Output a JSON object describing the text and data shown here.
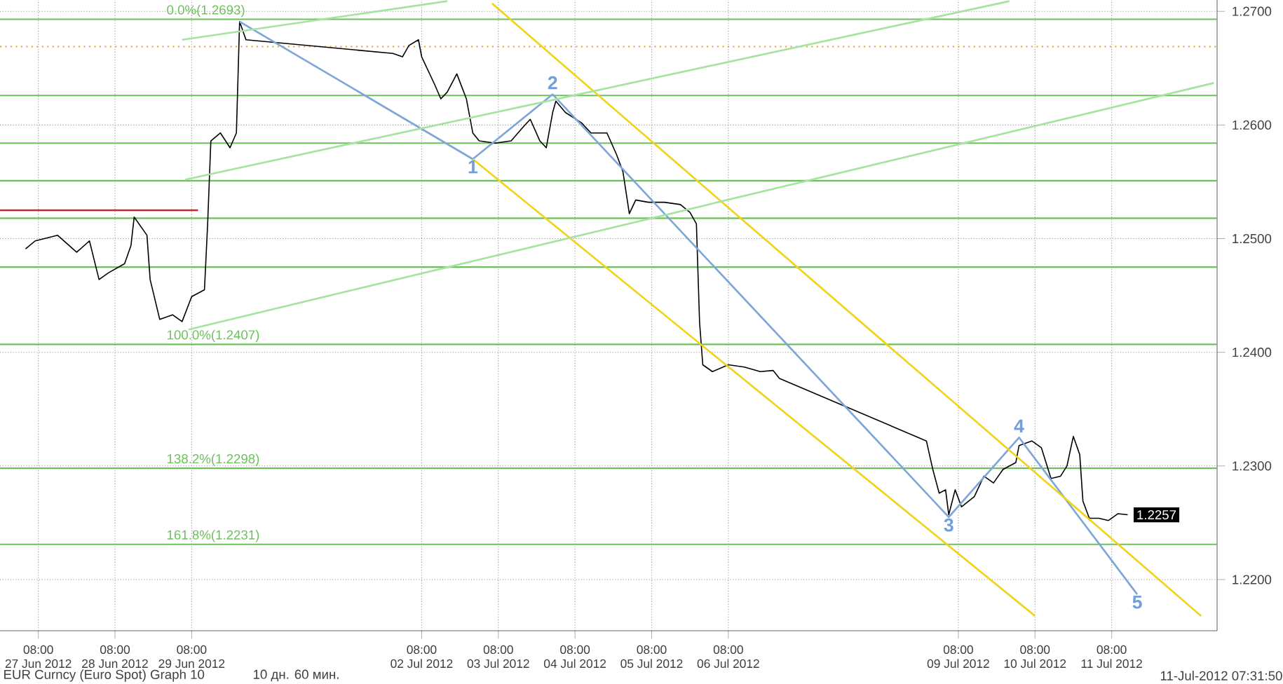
{
  "chart_data": {
    "type": "line",
    "xlim": [
      "2012-06-26T20:00",
      "2012-07-12T17:00"
    ],
    "ylim": [
      1.2155,
      1.271
    ],
    "xticks": [
      {
        "value": "2012-06-27T08:00",
        "label": "08:00 27 Jun 2012"
      },
      {
        "value": "2012-06-28T08:00",
        "label": "08:00 28 Jun 2012"
      },
      {
        "value": "2012-06-29T08:00",
        "label": "08:00 29 Jun 2012"
      },
      {
        "value": "2012-07-02T08:00",
        "label": "08:00 02 Jul 2012"
      },
      {
        "value": "2012-07-03T08:00",
        "label": "08:00 03 Jul 2012"
      },
      {
        "value": "2012-07-04T08:00",
        "label": "08:00 04 Jul 2012"
      },
      {
        "value": "2012-07-05T08:00",
        "label": "08:00 05 Jul 2012"
      },
      {
        "value": "2012-07-06T08:00",
        "label": "08:00 06 Jul 2012"
      },
      {
        "value": "2012-07-09T08:00",
        "label": "08:00 09 Jul 2012"
      },
      {
        "value": "2012-07-10T08:00",
        "label": "08:00 10 Jul 2012"
      },
      {
        "value": "2012-07-11T08:00",
        "label": "08:00 11 Jul 2012"
      }
    ],
    "yticks": [
      {
        "value": 1.22,
        "label": "1.2200"
      },
      {
        "value": 1.23,
        "label": "1.2300"
      },
      {
        "value": 1.24,
        "label": "1.2400"
      },
      {
        "value": 1.25,
        "label": "1.2500"
      },
      {
        "value": 1.26,
        "label": "1.2600"
      },
      {
        "value": 1.27,
        "label": "1.2700"
      }
    ],
    "grid": true,
    "marker": "none",
    "series": [
      {
        "color": "#000000",
        "line_style": "solid",
        "x": [
          "2012-06-27T04:00",
          "2012-06-27T07:00",
          "2012-06-27T14:00",
          "2012-06-27T20:00",
          "2012-06-28T00:00",
          "2012-06-28T03:00",
          "2012-06-28T06:00",
          "2012-06-28T11:00",
          "2012-06-28T13:00",
          "2012-06-28T14:00",
          "2012-06-28T18:00",
          "2012-06-28T19:00",
          "2012-06-28T22:00",
          "2012-06-29T02:00",
          "2012-06-29T05:00",
          "2012-06-29T08:00",
          "2012-06-29T12:00",
          "2012-06-29T13:00",
          "2012-06-29T14:00",
          "2012-06-29T17:00",
          "2012-06-29T20:00",
          "2012-06-29T22:00",
          "2012-06-29T23:00",
          "2012-06-30T01:00",
          "2012-07-01T23:00",
          "2012-07-02T02:00",
          "2012-07-02T04:00",
          "2012-07-02T07:00",
          "2012-07-02T08:00",
          "2012-07-02T12:00",
          "2012-07-02T14:00",
          "2012-07-02T16:00",
          "2012-07-02T19:00",
          "2012-07-02T22:00",
          "2012-07-03T00:00",
          "2012-07-03T02:00",
          "2012-07-03T07:00",
          "2012-07-03T12:00",
          "2012-07-03T16:00",
          "2012-07-03T18:00",
          "2012-07-03T21:00",
          "2012-07-03T23:00",
          "2012-07-04T01:00",
          "2012-07-04T02:00",
          "2012-07-04T05:00",
          "2012-07-04T10:00",
          "2012-07-04T13:00",
          "2012-07-04T18:00",
          "2012-07-04T21:00",
          "2012-07-04T23:00",
          "2012-07-05T01:00",
          "2012-07-05T03:00",
          "2012-07-05T07:00",
          "2012-07-05T12:00",
          "2012-07-05T17:00",
          "2012-07-05T20:00",
          "2012-07-05T22:00",
          "2012-07-05T23:00",
          "2012-07-06T00:00",
          "2012-07-06T03:00",
          "2012-07-06T08:00",
          "2012-07-06T13:00",
          "2012-07-06T18:00",
          "2012-07-06T22:00",
          "2012-07-07T00:00",
          "2012-07-08T22:00",
          "2012-07-09T00:00",
          "2012-07-09T02:00",
          "2012-07-09T04:00",
          "2012-07-09T05:00",
          "2012-07-09T07:00",
          "2012-07-09T09:00",
          "2012-07-09T13:00",
          "2012-07-09T16:00",
          "2012-07-09T19:00",
          "2012-07-09T22:00",
          "2012-07-10T02:00",
          "2012-07-10T03:00",
          "2012-07-10T07:00",
          "2012-07-10T10:00",
          "2012-07-10T13:00",
          "2012-07-10T16:00",
          "2012-07-10T18:00",
          "2012-07-10T20:00",
          "2012-07-10T22:00",
          "2012-07-10T23:00",
          "2012-07-11T01:00",
          "2012-07-11T04:00",
          "2012-07-11T07:00",
          "2012-07-11T10:00",
          "2012-07-11T13:00"
        ],
        "values": [
          1.2491,
          1.2498,
          1.2503,
          1.2488,
          1.2498,
          1.2464,
          1.247,
          1.2478,
          1.2494,
          1.2519,
          1.2503,
          1.2464,
          1.2429,
          1.2433,
          1.2427,
          1.2449,
          1.2455,
          1.2513,
          1.2586,
          1.2593,
          1.258,
          1.2593,
          1.2691,
          1.2675,
          1.2663,
          1.266,
          1.267,
          1.2675,
          1.266,
          1.2636,
          1.2623,
          1.2629,
          1.2645,
          1.2623,
          1.2593,
          1.2586,
          1.2584,
          1.2586,
          1.2599,
          1.2605,
          1.2586,
          1.258,
          1.2611,
          1.2621,
          1.2611,
          1.2602,
          1.2593,
          1.2593,
          1.2574,
          1.2559,
          1.2522,
          1.2534,
          1.2532,
          1.2532,
          1.253,
          1.2523,
          1.2513,
          1.2426,
          1.2389,
          1.2383,
          1.2389,
          1.2387,
          1.2383,
          1.2384,
          1.2377,
          1.2322,
          1.2297,
          1.2276,
          1.2279,
          1.2257,
          1.2279,
          1.2264,
          1.2273,
          1.2291,
          1.2285,
          1.2297,
          1.2303,
          1.2318,
          1.2322,
          1.2316,
          1.2289,
          1.2291,
          1.23,
          1.2326,
          1.231,
          1.2269,
          1.2254,
          1.2254,
          1.2252,
          1.2258,
          1.2257
        ],
        "value_labels": [
          null,
          null,
          null,
          null,
          null,
          null,
          null,
          null,
          null,
          null,
          null,
          null,
          null,
          null,
          null,
          null,
          null,
          null,
          null,
          null,
          null,
          null,
          null,
          null,
          null,
          null,
          null,
          null,
          null,
          null,
          null,
          null,
          null,
          null,
          null,
          null,
          null,
          null,
          null,
          null,
          null,
          null,
          null,
          null,
          null,
          null,
          null,
          null,
          null,
          null,
          null,
          null,
          null,
          null,
          null,
          null,
          null,
          null,
          null,
          null,
          null,
          null,
          null,
          null,
          null,
          null,
          null,
          null,
          null,
          null,
          null,
          null,
          null,
          null,
          null,
          null,
          null,
          null,
          null,
          null,
          null,
          null,
          null,
          null,
          null,
          null,
          null,
          null,
          null,
          null,
          "1.2257"
        ]
      },
      {
        "color": "#c0302a",
        "line_style": "solid",
        "x": [
          "2012-06-26T20:00",
          "2012-06-29T10:00"
        ],
        "values": [
          1.2525,
          1.2525
        ]
      },
      {
        "color": "#7ea6d8",
        "line_style": "solid",
        "x": [
          "2012-06-29T23:00",
          "2012-07-03T00:00",
          "2012-07-04T01:00",
          "2012-07-09T05:00",
          "2012-07-10T03:00",
          "2012-07-11T16:00"
        ],
        "values": [
          1.2691,
          1.257,
          1.2627,
          1.2255,
          1.2325,
          1.2187
        ]
      },
      {
        "color": "#f2d31b",
        "line_style": "solid",
        "x": [
          "2012-07-03T06:00",
          "2012-07-12T12:00"
        ],
        "values": [
          1.2707,
          1.2168
        ]
      },
      {
        "color": "#f2d31b",
        "line_style": "solid",
        "x": [
          "2012-07-03T00:00",
          "2012-07-10T08:00"
        ],
        "values": [
          1.257,
          1.2168
        ]
      },
      {
        "color": "#a6e3a0",
        "line_style": "solid",
        "x": [
          "2012-06-29T05:00",
          "2012-07-02T16:00"
        ],
        "values": [
          1.2675,
          1.2709
        ]
      },
      {
        "color": "#a6e3a0",
        "line_style": "solid",
        "x": [
          "2012-06-29T06:00",
          "2012-07-10T00:00"
        ],
        "values": [
          1.2552,
          1.2709
        ]
      },
      {
        "color": "#a6e3a0",
        "line_style": "solid",
        "x": [
          "2012-06-29T07:00",
          "2012-07-12T16:00"
        ],
        "values": [
          1.242,
          1.2637
        ]
      }
    ],
    "ref_lines": [
      {
        "axis": "y",
        "value": 1.2693,
        "label": "0.0%(1.2693)",
        "color": "#6cc05c"
      },
      {
        "axis": "y",
        "value": 1.2626,
        "color": "#6cc05c"
      },
      {
        "axis": "y",
        "value": 1.2584,
        "color": "#6cc05c"
      },
      {
        "axis": "y",
        "value": 1.2551,
        "color": "#6cc05c"
      },
      {
        "axis": "y",
        "value": 1.2518,
        "color": "#6cc05c"
      },
      {
        "axis": "y",
        "value": 1.2475,
        "color": "#6cc05c"
      },
      {
        "axis": "y",
        "value": 1.2407,
        "label": "100.0%(1.2407)",
        "color": "#6cc05c"
      },
      {
        "axis": "y",
        "value": 1.2298,
        "label": "138.2%(1.2298)",
        "color": "#6cc05c"
      },
      {
        "axis": "y",
        "value": 1.2231,
        "label": "161.8%(1.2231)",
        "color": "#6cc05c"
      },
      {
        "axis": "y",
        "value": 1.2669,
        "color": "#e8a030",
        "line_style": "dotted"
      }
    ],
    "annotations": [
      {
        "text": "1",
        "x": "2012-07-03T00:00",
        "y": 1.257
      },
      {
        "text": "2",
        "x": "2012-07-04T01:00",
        "y": 1.2627
      },
      {
        "text": "3",
        "x": "2012-07-09T05:00",
        "y": 1.2255
      },
      {
        "text": "4",
        "x": "2012-07-10T03:00",
        "y": 1.2325
      },
      {
        "text": "5",
        "x": "2012-07-11T16:00",
        "y": 1.2187
      },
      "EUR Curncy (Euro Spot) Graph 10",
      "10 дн. 60 мин.",
      "11-Jul-2012 07:31:50"
    ]
  }
}
